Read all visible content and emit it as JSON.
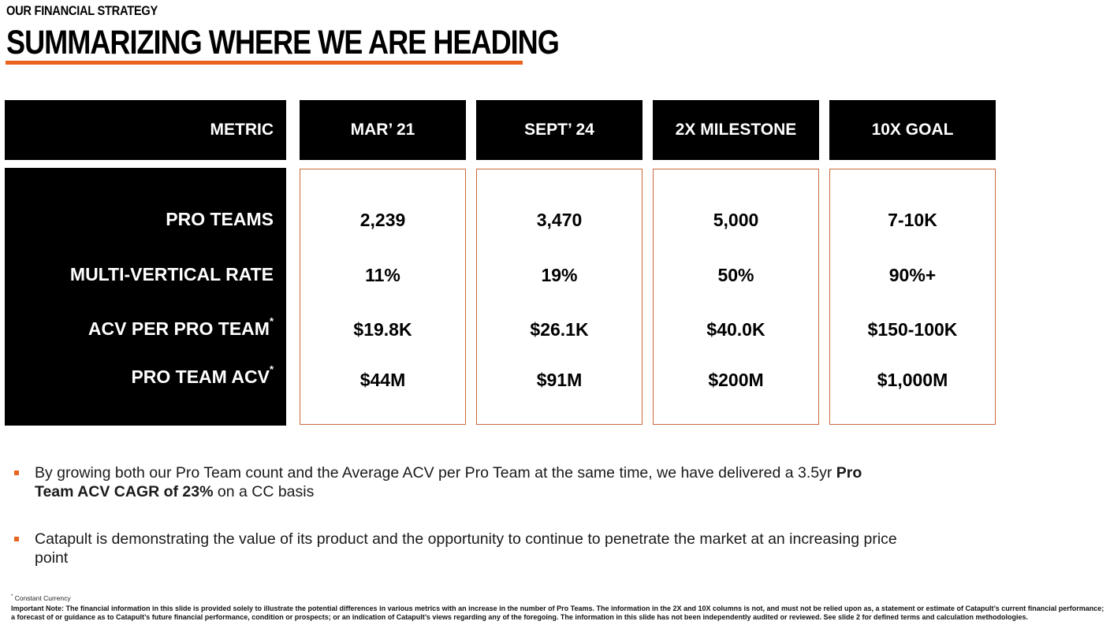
{
  "header": {
    "kicker": "OUR FINANCIAL STRATEGY",
    "title": "SUMMARIZING WHERE WE ARE HEADING"
  },
  "table": {
    "columns": [
      "METRIC",
      "MAR’ 21",
      "SEPT’ 24",
      "2X MILESTONE",
      "10X GOAL"
    ],
    "rows": [
      {
        "label": "PRO TEAMS",
        "marker": "",
        "values": [
          "2,239",
          "3,470",
          "5,000",
          "7-10K"
        ]
      },
      {
        "label": "MULTI-VERTICAL RATE",
        "marker": "",
        "values": [
          "11%",
          "19%",
          "50%",
          "90%+"
        ]
      },
      {
        "label": "ACV PER PRO TEAM",
        "marker": "*",
        "values": [
          "$19.8K",
          "$26.1K",
          "$40.0K",
          "$150-100K"
        ]
      },
      {
        "label": "PRO TEAM ACV",
        "marker": "*",
        "values": [
          "$44M",
          "$91M",
          "$200M",
          "$1,000M"
        ]
      }
    ]
  },
  "bullets": [
    {
      "pre": "By growing both our Pro Team count and the Average ACV per Pro Team at the same time, we have delivered a 3.5yr ",
      "bold": "Pro Team ACV CAGR of 23%",
      "post": " on a CC basis"
    },
    {
      "pre": "Catapult is demonstrating the value of its product and the opportunity to continue to penetrate the market at an increasing price point",
      "bold": "",
      "post": ""
    }
  ],
  "footnotes": {
    "marker": "*",
    "constant_currency": "Constant Currency",
    "important_note": "Important Note: The financial information in this slide is provided solely to illustrate the potential differences in various metrics with an increase in the number of Pro Teams. The information in the 2X and 10X columns is not, and must not be relied upon as, a statement or estimate of Catapult’s current financial performance; a forecast of or guidance as to Catapult’s future financial performance, condition or prospects; or an indication of Catapult’s views regarding any of the foregoing. The information in this slide has not been independently audited or reviewed. See slide 2 for defined terms and calculation methodologies."
  },
  "colors": {
    "accent": "#e8641e",
    "header_bg": "#000000",
    "border": "#c86a3c"
  }
}
